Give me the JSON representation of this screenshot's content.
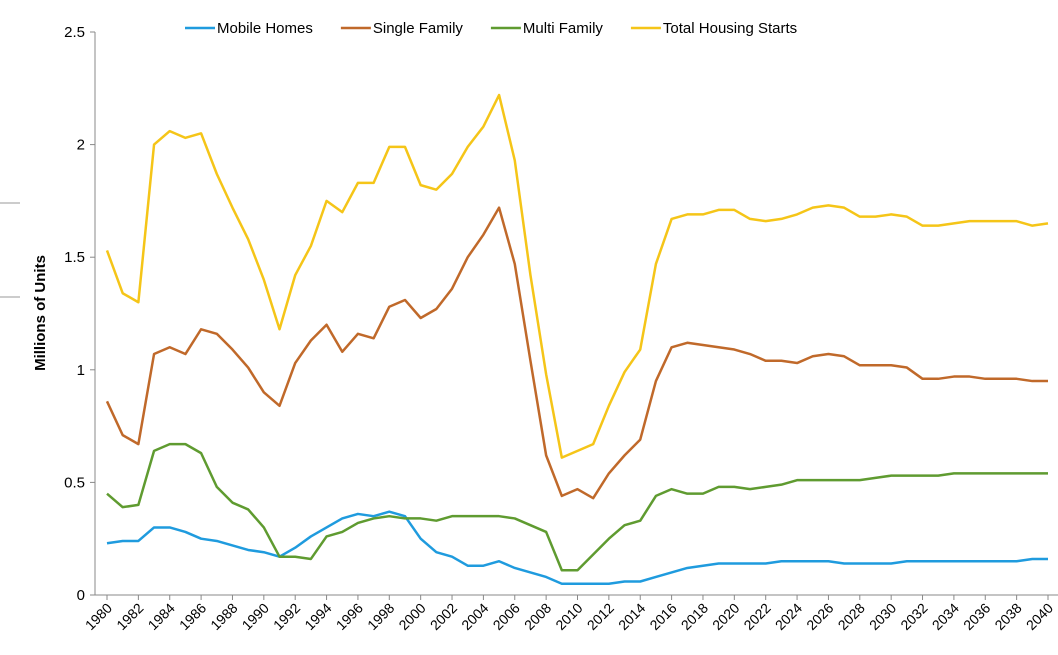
{
  "chart_data": {
    "type": "line",
    "y_label": "Millions of Units",
    "x": [
      1980,
      1981,
      1982,
      1983,
      1984,
      1985,
      1986,
      1987,
      1988,
      1989,
      1990,
      1991,
      1992,
      1993,
      1994,
      1995,
      1996,
      1997,
      1998,
      1999,
      2000,
      2001,
      2002,
      2003,
      2004,
      2005,
      2006,
      2007,
      2008,
      2009,
      2010,
      2011,
      2012,
      2013,
      2014,
      2015,
      2016,
      2017,
      2018,
      2019,
      2020,
      2021,
      2022,
      2023,
      2024,
      2025,
      2026,
      2027,
      2028,
      2029,
      2030,
      2031,
      2032,
      2033,
      2034,
      2035,
      2036,
      2037,
      2038,
      2039,
      2040
    ],
    "xlim": [
      1980,
      2040
    ],
    "xticks": [
      1980,
      1982,
      1984,
      1986,
      1988,
      1990,
      1992,
      1994,
      1996,
      1998,
      2000,
      2002,
      2004,
      2006,
      2008,
      2010,
      2012,
      2014,
      2016,
      2018,
      2020,
      2022,
      2024,
      2026,
      2028,
      2030,
      2032,
      2034,
      2036,
      2038,
      2040
    ],
    "ylim": [
      0,
      2.5
    ],
    "yticks": [
      0,
      0.5,
      1,
      1.5,
      2,
      2.5
    ],
    "grid": false,
    "legend": "top",
    "series": [
      {
        "name": "Mobile Homes",
        "color": "#1f9bde",
        "values": [
          0.23,
          0.24,
          0.24,
          0.3,
          0.3,
          0.28,
          0.25,
          0.24,
          0.22,
          0.2,
          0.19,
          0.17,
          0.21,
          0.26,
          0.3,
          0.34,
          0.36,
          0.35,
          0.37,
          0.35,
          0.25,
          0.19,
          0.17,
          0.13,
          0.13,
          0.15,
          0.12,
          0.1,
          0.08,
          0.05,
          0.05,
          0.05,
          0.05,
          0.06,
          0.06,
          0.08,
          0.1,
          0.12,
          0.13,
          0.14,
          0.14,
          0.14,
          0.14,
          0.15,
          0.15,
          0.15,
          0.15,
          0.14,
          0.14,
          0.14,
          0.14,
          0.15,
          0.15,
          0.15,
          0.15,
          0.15,
          0.15,
          0.15,
          0.15,
          0.16,
          0.16
        ]
      },
      {
        "name": "Single Family",
        "color": "#c0692a",
        "values": [
          0.86,
          0.71,
          0.67,
          1.07,
          1.1,
          1.07,
          1.18,
          1.16,
          1.09,
          1.01,
          0.9,
          0.84,
          1.03,
          1.13,
          1.2,
          1.08,
          1.16,
          1.14,
          1.28,
          1.31,
          1.23,
          1.27,
          1.36,
          1.5,
          1.6,
          1.72,
          1.47,
          1.04,
          0.62,
          0.44,
          0.47,
          0.43,
          0.54,
          0.62,
          0.69,
          0.95,
          1.1,
          1.12,
          1.11,
          1.1,
          1.09,
          1.07,
          1.04,
          1.04,
          1.03,
          1.06,
          1.07,
          1.06,
          1.02,
          1.02,
          1.02,
          1.01,
          0.96,
          0.96,
          0.97,
          0.97,
          0.96,
          0.96,
          0.96,
          0.95,
          0.95
        ]
      },
      {
        "name": "Multi Family",
        "color": "#5f9b30",
        "values": [
          0.45,
          0.39,
          0.4,
          0.64,
          0.67,
          0.67,
          0.63,
          0.48,
          0.41,
          0.38,
          0.3,
          0.17,
          0.17,
          0.16,
          0.26,
          0.28,
          0.32,
          0.34,
          0.35,
          0.34,
          0.34,
          0.33,
          0.35,
          0.35,
          0.35,
          0.35,
          0.34,
          0.31,
          0.28,
          0.11,
          0.11,
          0.18,
          0.25,
          0.31,
          0.33,
          0.44,
          0.47,
          0.45,
          0.45,
          0.48,
          0.48,
          0.47,
          0.48,
          0.49,
          0.51,
          0.51,
          0.51,
          0.51,
          0.51,
          0.52,
          0.53,
          0.53,
          0.53,
          0.53,
          0.54,
          0.54,
          0.54,
          0.54,
          0.54,
          0.54,
          0.54
        ]
      },
      {
        "name": "Total Housing Starts",
        "color": "#f5c518",
        "values": [
          1.53,
          1.34,
          1.3,
          2.0,
          2.06,
          2.03,
          2.05,
          1.87,
          1.72,
          1.58,
          1.4,
          1.18,
          1.42,
          1.55,
          1.75,
          1.7,
          1.83,
          1.83,
          1.99,
          1.99,
          1.82,
          1.8,
          1.87,
          1.99,
          2.08,
          2.22,
          1.93,
          1.42,
          0.98,
          0.61,
          0.64,
          0.67,
          0.84,
          0.99,
          1.09,
          1.47,
          1.67,
          1.69,
          1.69,
          1.71,
          1.71,
          1.67,
          1.66,
          1.67,
          1.69,
          1.72,
          1.73,
          1.72,
          1.68,
          1.68,
          1.69,
          1.68,
          1.64,
          1.64,
          1.65,
          1.66,
          1.66,
          1.66,
          1.66,
          1.64,
          1.65
        ]
      }
    ]
  }
}
